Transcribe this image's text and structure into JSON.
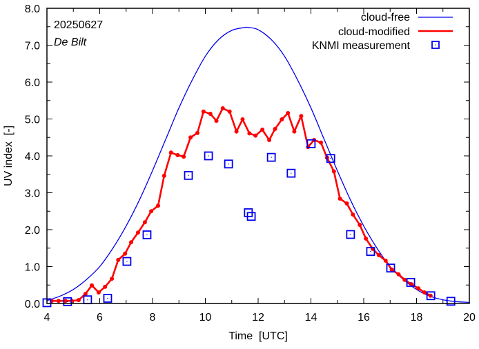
{
  "chart_data": {
    "type": "line",
    "title": "",
    "annotations": {
      "date": "20250627",
      "location": "De Bilt"
    },
    "xlabel": "Time  [UTC]",
    "ylabel": "UV index  [-]",
    "xlim": [
      4,
      20
    ],
    "ylim": [
      0,
      8
    ],
    "xticks": [
      4,
      6,
      8,
      10,
      12,
      14,
      16,
      18,
      20
    ],
    "xtick_labels": [
      "4",
      "6",
      "8",
      "10",
      "12",
      "14",
      "16",
      "18",
      "20"
    ],
    "yticks": [
      0,
      1,
      2,
      3,
      4,
      5,
      6,
      7,
      8
    ],
    "ytick_labels": [
      "0.0",
      "1.0",
      "2.0",
      "3.0",
      "4.0",
      "5.0",
      "6.0",
      "7.0",
      "8.0"
    ],
    "grid": false,
    "legend_position": "top-right",
    "series": [
      {
        "name": "cloud-free",
        "kind": "line",
        "color": "#0000ee",
        "peak_time": 11.63,
        "peak_value": 7.48,
        "x": [
          4.0,
          4.5,
          5.0,
          5.5,
          6.0,
          6.5,
          7.0,
          7.5,
          8.0,
          8.5,
          9.0,
          9.5,
          10.0,
          10.5,
          11.0,
          11.5,
          11.63,
          12.0,
          12.5,
          13.0,
          13.5,
          14.0,
          14.5,
          15.0,
          15.5,
          16.0,
          16.5,
          17.0,
          17.5,
          18.0,
          18.5,
          19.0,
          19.5,
          20.0
        ],
        "y": [
          0.08,
          0.2,
          0.38,
          0.65,
          1.0,
          1.5,
          2.1,
          2.8,
          3.6,
          4.45,
          5.3,
          6.05,
          6.7,
          7.15,
          7.4,
          7.48,
          7.48,
          7.42,
          7.15,
          6.7,
          6.05,
          5.3,
          4.45,
          3.6,
          2.8,
          2.1,
          1.5,
          1.0,
          0.65,
          0.38,
          0.2,
          0.1,
          0.05,
          0.03
        ]
      },
      {
        "name": "cloud-modified",
        "kind": "line-points",
        "color": "#ff0000",
        "x": [
          4.18,
          4.44,
          4.7,
          4.94,
          5.2,
          5.46,
          5.7,
          5.96,
          6.2,
          6.46,
          6.7,
          6.96,
          7.19,
          7.45,
          7.71,
          7.95,
          8.21,
          8.44,
          8.7,
          8.95,
          9.18,
          9.44,
          9.7,
          9.93,
          10.19,
          10.42,
          10.66,
          10.92,
          11.18,
          11.41,
          11.67,
          11.9,
          12.16,
          12.42,
          12.64,
          12.9,
          13.13,
          13.37,
          13.63,
          13.89,
          14.12,
          14.38,
          14.61,
          14.87,
          15.1,
          15.36,
          15.59,
          15.85,
          16.08,
          16.34,
          16.57,
          16.83,
          17.06,
          17.32,
          17.55,
          17.81,
          18.07,
          18.3,
          18.53
        ],
        "y": [
          0.07,
          0.07,
          0.07,
          0.07,
          0.09,
          0.26,
          0.49,
          0.3,
          0.45,
          0.67,
          1.18,
          1.35,
          1.66,
          1.92,
          2.2,
          2.5,
          2.65,
          3.46,
          4.09,
          4.02,
          3.98,
          4.5,
          4.62,
          5.2,
          5.14,
          4.95,
          5.29,
          5.2,
          4.66,
          4.99,
          4.61,
          4.55,
          4.71,
          4.43,
          4.73,
          4.99,
          5.16,
          4.66,
          5.08,
          4.24,
          4.43,
          4.36,
          3.95,
          3.58,
          2.84,
          2.71,
          2.41,
          2.13,
          1.76,
          1.48,
          1.31,
          1.16,
          0.92,
          0.79,
          0.64,
          0.52,
          0.41,
          0.3,
          0.21
        ]
      },
      {
        "name": "KNMI measurement",
        "kind": "points",
        "color": "#0000ee",
        "marker": "square-with-dot",
        "x": [
          4.0,
          4.78,
          5.54,
          6.3,
          7.03,
          7.79,
          9.36,
          10.12,
          10.88,
          11.63,
          11.74,
          12.5,
          13.25,
          14.01,
          14.75,
          15.5,
          16.26,
          17.02,
          17.78,
          18.54,
          19.3
        ],
        "y": [
          0.02,
          0.05,
          0.1,
          0.14,
          1.14,
          1.86,
          3.47,
          4.0,
          3.78,
          2.46,
          2.36,
          3.96,
          3.53,
          4.33,
          3.93,
          1.87,
          1.41,
          0.96,
          0.57,
          0.21,
          0.06
        ]
      }
    ]
  }
}
